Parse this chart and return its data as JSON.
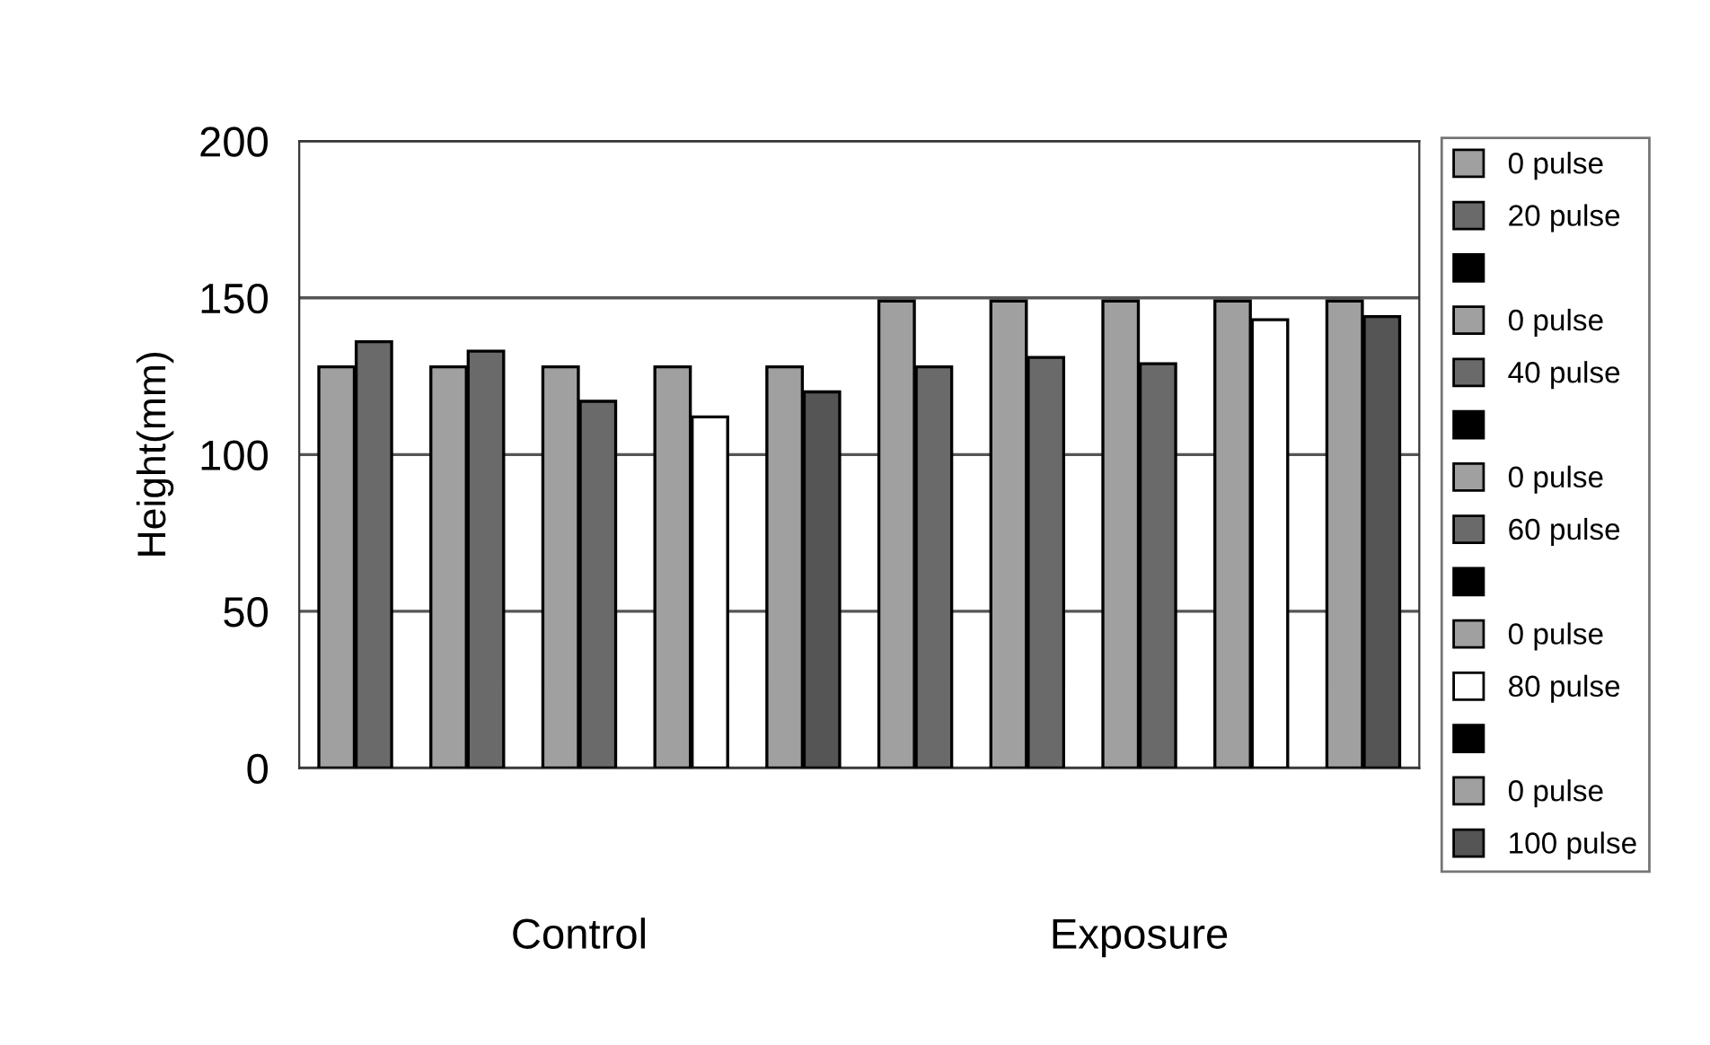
{
  "chart_data": {
    "type": "bar",
    "ylabel": "Height(mm)",
    "categories": [
      "Control",
      "Exposure"
    ],
    "series": [
      {
        "name": "0 pulse",
        "color": "#a0a0a0",
        "values": [
          128,
          149
        ]
      },
      {
        "name": "20 pulse",
        "color": "#6a6a6a",
        "values": [
          136,
          128
        ]
      },
      {
        "color": "#000000",
        "values": [
          null,
          null
        ]
      },
      {
        "name": "0 pulse",
        "color": "#a0a0a0",
        "values": [
          128,
          149
        ]
      },
      {
        "name": "40 pulse",
        "color": "#6a6a6a",
        "values": [
          133,
          131
        ]
      },
      {
        "color": "#000000",
        "values": [
          null,
          null
        ]
      },
      {
        "name": "0 pulse",
        "color": "#a0a0a0",
        "values": [
          128,
          149
        ]
      },
      {
        "name": "60 pulse",
        "color": "#6a6a6a",
        "values": [
          117,
          129
        ]
      },
      {
        "color": "#000000",
        "values": [
          null,
          null
        ]
      },
      {
        "name": "0 pulse",
        "color": "#a0a0a0",
        "values": [
          128,
          149
        ]
      },
      {
        "name": "80 pulse",
        "color": "#ffffff",
        "values": [
          112,
          143
        ]
      },
      {
        "color": "#000000",
        "values": [
          null,
          null
        ]
      },
      {
        "name": "0 pulse",
        "color": "#a0a0a0",
        "values": [
          128,
          149
        ]
      },
      {
        "name": "100 pulse",
        "color": "#555555",
        "values": [
          120,
          144
        ]
      }
    ],
    "ylim": [
      0,
      200
    ],
    "yticks": [
      0,
      50,
      100,
      150,
      200
    ],
    "grid": "y",
    "legend": "right"
  }
}
